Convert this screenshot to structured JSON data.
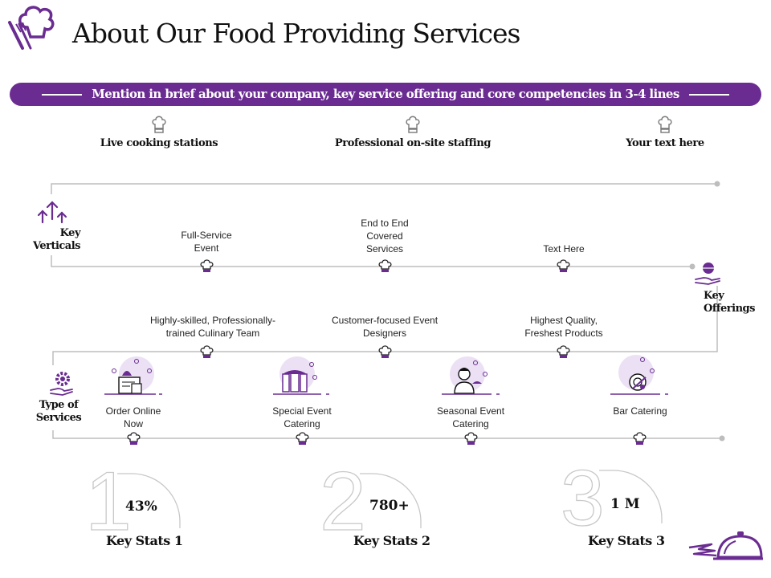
{
  "title": "About Our Food Providing Services",
  "banner_text": "Mention in brief about your company, key service offering and core competencies in 3-4 lines",
  "competencies": [
    {
      "label": "Live cooking stations"
    },
    {
      "label": "Professional on-site staffing"
    },
    {
      "label": "Your text here"
    }
  ],
  "key_verticals": {
    "label": "Key Verticals",
    "items": [
      "Full-Service Event",
      "End to End Covered Services",
      "Text Here"
    ]
  },
  "key_offerings": {
    "label": "Key Offerings",
    "items": [
      "Highly-skilled, Professionally-trained Culinary Team",
      "Customer-focused Event Designers",
      "Highest Quality, Freshest Products"
    ]
  },
  "type_of_services": {
    "label": "Type of Services",
    "items": [
      "Order Online Now",
      "Special Event Catering",
      "Seasonal Event Catering",
      "Bar Catering"
    ]
  },
  "stats": [
    {
      "number": "1",
      "value": "43%",
      "label": "Key Stats 1"
    },
    {
      "number": "2",
      "value": "780+",
      "label": "Key Stats 2"
    },
    {
      "number": "3",
      "value": "1 M",
      "label": "Key Stats 3"
    }
  ],
  "colors": {
    "accent": "#6a2c91",
    "line": "#bdbdbd",
    "light_accent": "#ece0f5"
  },
  "icons": [
    "chef-hat-cutlery-logo",
    "chef-hat-icon",
    "arrows-up-icon",
    "cloche-hand-icon",
    "gear-hand-icon",
    "cloche-speed-icon"
  ]
}
